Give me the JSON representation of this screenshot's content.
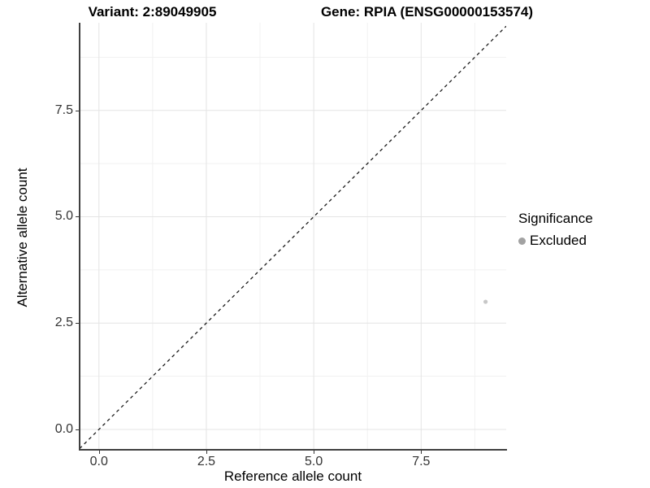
{
  "header": {
    "variant_title": "Variant: 2:89049905",
    "gene_title": "Gene: RPIA (ENSG00000153574)"
  },
  "chart_data": {
    "type": "scatter",
    "title_left": "Variant: 2:89049905",
    "title_right": "Gene: RPIA (ENSG00000153574)",
    "xlabel": "Reference allele count",
    "ylabel": "Alternative allele count",
    "xlim": [
      -0.45,
      9.48
    ],
    "ylim": [
      -0.46,
      9.56
    ],
    "x_ticks": {
      "values": [
        0,
        2.5,
        5,
        7.5
      ],
      "labels": [
        "0.0",
        "2.5",
        "5.0",
        "7.5"
      ]
    },
    "y_ticks": {
      "values": [
        0,
        2.5,
        5,
        7.5
      ],
      "labels": [
        "0.0",
        "2.5",
        "5.0",
        "7.5"
      ]
    },
    "minor_gridlines": [
      1.25,
      3.75,
      6.25,
      8.75
    ],
    "grid": true,
    "points": [
      {
        "x": 9,
        "y": 3,
        "series": "Excluded"
      }
    ],
    "reference_line": {
      "slope": 1,
      "intercept": 0,
      "style": "dashed",
      "label": "identity"
    },
    "legend": {
      "title": "Significance",
      "position": "right",
      "items": [
        {
          "label": "Excluded",
          "color": "#a2a2a2"
        }
      ]
    }
  },
  "colors": {
    "background": "#ffffff",
    "grid_major": "#e4e4e4",
    "grid_minor": "#f1f1f1",
    "axis_line": "#404040",
    "tick_text": "#333333",
    "title_text": "#000000",
    "identity_line": "#1a1a1a",
    "point": "#c7c7c7",
    "legend_key": "#a2a2a2"
  }
}
